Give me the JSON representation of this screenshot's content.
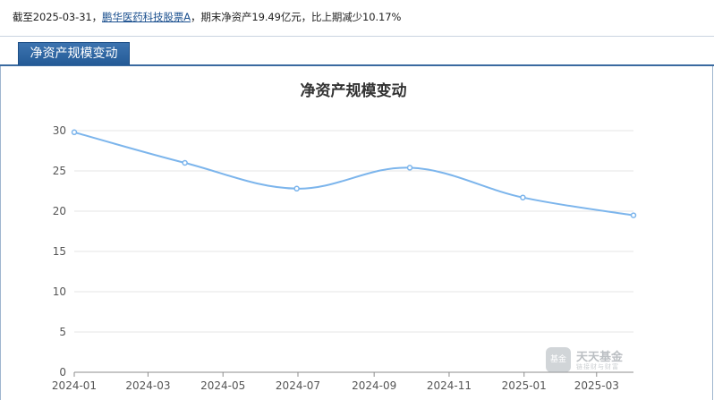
{
  "summary": {
    "prefix": "截至2025-03-31，",
    "fund_name": "鹏华医药科技股票A",
    "suffix": "期末净资产19.49亿元，比上期减少10.17%"
  },
  "tab": {
    "label": "净资产规模变动"
  },
  "watermark": {
    "brand": "天天基金",
    "sub": "链接财与财富",
    "logo_text": "基金"
  },
  "colors": {
    "line": "#7cb5ec",
    "tab": "#2f66a3",
    "grid": "#e6e6e6"
  },
  "chart_data": {
    "type": "line",
    "title": "净资产规模变动",
    "xlabel": "",
    "ylabel": "",
    "x_ticks": [
      "2024-01",
      "2024-03",
      "2024-05",
      "2024-07",
      "2024-09",
      "2024-11",
      "2025-01",
      "2025-03"
    ],
    "x_range": [
      "2024-01-01",
      "2025-03-31"
    ],
    "ylim": [
      0,
      30
    ],
    "y_ticks": [
      0,
      5,
      10,
      15,
      20,
      25,
      30
    ],
    "grid": true,
    "legend": "none",
    "series": [
      {
        "name": "",
        "points": [
          {
            "date": "2024-01-01",
            "value": 29.8
          },
          {
            "date": "2024-03-31",
            "value": 26.0
          },
          {
            "date": "2024-06-30",
            "value": 22.8
          },
          {
            "date": "2024-09-30",
            "value": 25.4
          },
          {
            "date": "2024-12-31",
            "value": 21.7
          },
          {
            "date": "2025-03-31",
            "value": 19.49
          }
        ]
      }
    ]
  }
}
